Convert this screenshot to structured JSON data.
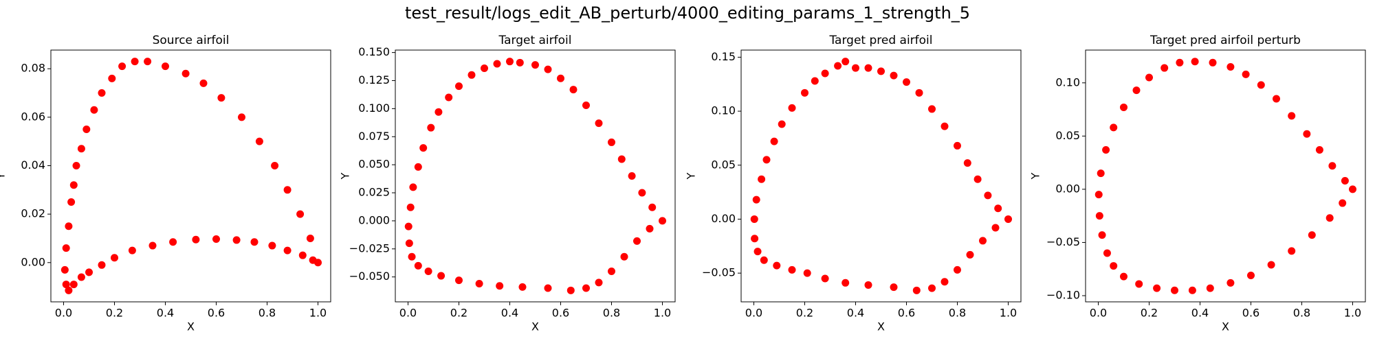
{
  "title": "test_result/logs_edit_AB_perturb/4000_editing_params_1_strength_5",
  "chart_data": [
    {
      "type": "scatter",
      "title": "Source airfoil",
      "x_label": "X",
      "y_label": "Y",
      "color": "#ff0000",
      "xlim": [
        -0.05,
        1.05
      ],
      "ylim": [
        -0.0162,
        0.0877
      ],
      "xticks": [
        {
          "value": 0,
          "label": "0.0"
        },
        0.2,
        0.4,
        0.6,
        0.8,
        {
          "value": 1,
          "label": "1.0"
        }
      ],
      "yticks": [
        {
          "value": 0,
          "label": "0.00"
        },
        {
          "value": 0.02,
          "label": "0.02"
        },
        {
          "value": 0.04,
          "label": "0.04"
        },
        {
          "value": 0.06,
          "label": "0.06"
        },
        {
          "value": 0.08,
          "label": "0.08"
        }
      ],
      "x": [
        1.0,
        0.97,
        0.93,
        0.88,
        0.83,
        0.77,
        0.7,
        0.62,
        0.55,
        0.48,
        0.4,
        0.33,
        0.28,
        0.23,
        0.19,
        0.15,
        0.12,
        0.09,
        0.07,
        0.05,
        0.04,
        0.03,
        0.02,
        0.01,
        0.005,
        0.01,
        0.02,
        0.04,
        0.07,
        0.1,
        0.15,
        0.2,
        0.27,
        0.35,
        0.43,
        0.52,
        0.6,
        0.68,
        0.75,
        0.82,
        0.88,
        0.94,
        0.98
      ],
      "y": [
        0.0,
        0.01,
        0.02,
        0.03,
        0.04,
        0.05,
        0.06,
        0.068,
        0.074,
        0.078,
        0.081,
        0.083,
        0.083,
        0.081,
        0.076,
        0.07,
        0.063,
        0.055,
        0.047,
        0.04,
        0.032,
        0.025,
        0.015,
        0.006,
        -0.003,
        -0.009,
        -0.0115,
        -0.009,
        -0.006,
        -0.004,
        -0.001,
        0.002,
        0.005,
        0.007,
        0.0085,
        0.0095,
        0.0097,
        0.0093,
        0.0085,
        0.007,
        0.005,
        0.003,
        0.001
      ]
    },
    {
      "type": "scatter",
      "title": "Target airfoil",
      "x_label": "X",
      "y_label": "Y",
      "color": "#ff0000",
      "xlim": [
        -0.05,
        1.05
      ],
      "ylim": [
        -0.0722,
        0.1522
      ],
      "xticks": [
        {
          "value": 0,
          "label": "0.0"
        },
        0.2,
        0.4,
        0.6,
        0.8,
        {
          "value": 1,
          "label": "1.0"
        }
      ],
      "yticks": [
        {
          "value": -0.05,
          "label": "−0.050"
        },
        {
          "value": -0.025,
          "label": "−0.025"
        },
        {
          "value": 0,
          "label": "0.000"
        },
        {
          "value": 0.025,
          "label": "0.025"
        },
        {
          "value": 0.05,
          "label": "0.050"
        },
        {
          "value": 0.075,
          "label": "0.075"
        },
        {
          "value": 0.1,
          "label": "0.100"
        },
        {
          "value": 0.125,
          "label": "0.125"
        },
        {
          "value": 0.15,
          "label": "0.150"
        }
      ],
      "x": [
        1.0,
        0.96,
        0.92,
        0.88,
        0.84,
        0.8,
        0.75,
        0.7,
        0.65,
        0.6,
        0.55,
        0.5,
        0.44,
        0.4,
        0.35,
        0.3,
        0.25,
        0.2,
        0.16,
        0.12,
        0.09,
        0.06,
        0.04,
        0.02,
        0.01,
        0.002,
        0.005,
        0.015,
        0.04,
        0.08,
        0.13,
        0.2,
        0.28,
        0.36,
        0.45,
        0.55,
        0.64,
        0.7,
        0.75,
        0.8,
        0.85,
        0.9,
        0.95
      ],
      "y": [
        0.0,
        0.012,
        0.025,
        0.04,
        0.055,
        0.07,
        0.087,
        0.103,
        0.117,
        0.127,
        0.135,
        0.139,
        0.141,
        0.142,
        0.14,
        0.136,
        0.13,
        0.12,
        0.11,
        0.097,
        0.083,
        0.065,
        0.048,
        0.03,
        0.012,
        -0.005,
        -0.02,
        -0.032,
        -0.04,
        -0.045,
        -0.049,
        -0.053,
        -0.056,
        -0.058,
        -0.059,
        -0.06,
        -0.062,
        -0.06,
        -0.055,
        -0.045,
        -0.032,
        -0.018,
        -0.007
      ]
    },
    {
      "type": "scatter",
      "title": "Target pred airfoil",
      "x_label": "X",
      "y_label": "Y",
      "color": "#ff0000",
      "xlim": [
        -0.05,
        1.05
      ],
      "ylim": [
        -0.0766,
        0.1566
      ],
      "xticks": [
        {
          "value": 0,
          "label": "0.0"
        },
        0.2,
        0.4,
        0.6,
        0.8,
        {
          "value": 1,
          "label": "1.0"
        }
      ],
      "yticks": [
        {
          "value": -0.05,
          "label": "−0.05"
        },
        {
          "value": 0,
          "label": "0.00"
        },
        {
          "value": 0.05,
          "label": "0.05"
        },
        {
          "value": 0.1,
          "label": "0.10"
        },
        {
          "value": 0.15,
          "label": "0.15"
        }
      ],
      "x": [
        1.0,
        0.96,
        0.92,
        0.88,
        0.84,
        0.8,
        0.75,
        0.7,
        0.65,
        0.6,
        0.55,
        0.5,
        0.45,
        0.4,
        0.36,
        0.33,
        0.28,
        0.24,
        0.2,
        0.15,
        0.11,
        0.08,
        0.05,
        0.03,
        0.01,
        0.002,
        0.003,
        0.015,
        0.04,
        0.09,
        0.15,
        0.21,
        0.28,
        0.36,
        0.45,
        0.55,
        0.64,
        0.7,
        0.75,
        0.8,
        0.85,
        0.9,
        0.95
      ],
      "y": [
        0.0,
        0.01,
        0.022,
        0.037,
        0.052,
        0.068,
        0.086,
        0.102,
        0.117,
        0.127,
        0.133,
        0.137,
        0.14,
        0.14,
        0.146,
        0.142,
        0.135,
        0.128,
        0.117,
        0.103,
        0.088,
        0.072,
        0.055,
        0.037,
        0.018,
        0.0,
        -0.018,
        -0.03,
        -0.038,
        -0.043,
        -0.047,
        -0.05,
        -0.055,
        -0.059,
        -0.061,
        -0.063,
        -0.066,
        -0.064,
        -0.058,
        -0.047,
        -0.033,
        -0.02,
        -0.008
      ]
    },
    {
      "type": "scatter",
      "title": "Target pred airfoil perturb",
      "x_label": "X",
      "y_label": "Y",
      "color": "#ff0000",
      "xlim": [
        -0.05,
        1.05
      ],
      "ylim": [
        -0.1058,
        0.1308
      ],
      "xticks": [
        {
          "value": 0,
          "label": "0.0"
        },
        0.2,
        0.4,
        0.6,
        0.8,
        {
          "value": 1,
          "label": "1.0"
        }
      ],
      "yticks": [
        {
          "value": -0.1,
          "label": "−0.10"
        },
        {
          "value": -0.05,
          "label": "−0.05"
        },
        {
          "value": 0,
          "label": "0.00"
        },
        {
          "value": 0.05,
          "label": "0.05"
        },
        {
          "value": 0.1,
          "label": "0.10"
        }
      ],
      "x": [
        1.0,
        0.97,
        0.92,
        0.87,
        0.82,
        0.76,
        0.7,
        0.64,
        0.58,
        0.52,
        0.45,
        0.38,
        0.32,
        0.26,
        0.2,
        0.15,
        0.1,
        0.06,
        0.03,
        0.01,
        0.002,
        0.005,
        0.015,
        0.035,
        0.06,
        0.1,
        0.16,
        0.23,
        0.3,
        0.37,
        0.44,
        0.52,
        0.6,
        0.68,
        0.76,
        0.84,
        0.91,
        0.96
      ],
      "y": [
        0.0,
        0.008,
        0.022,
        0.037,
        0.052,
        0.069,
        0.085,
        0.098,
        0.108,
        0.115,
        0.119,
        0.12,
        0.119,
        0.114,
        0.105,
        0.093,
        0.077,
        0.058,
        0.037,
        0.015,
        -0.005,
        -0.025,
        -0.043,
        -0.06,
        -0.072,
        -0.082,
        -0.089,
        -0.093,
        -0.095,
        -0.095,
        -0.093,
        -0.088,
        -0.081,
        -0.071,
        -0.058,
        -0.043,
        -0.027,
        -0.013
      ]
    }
  ]
}
